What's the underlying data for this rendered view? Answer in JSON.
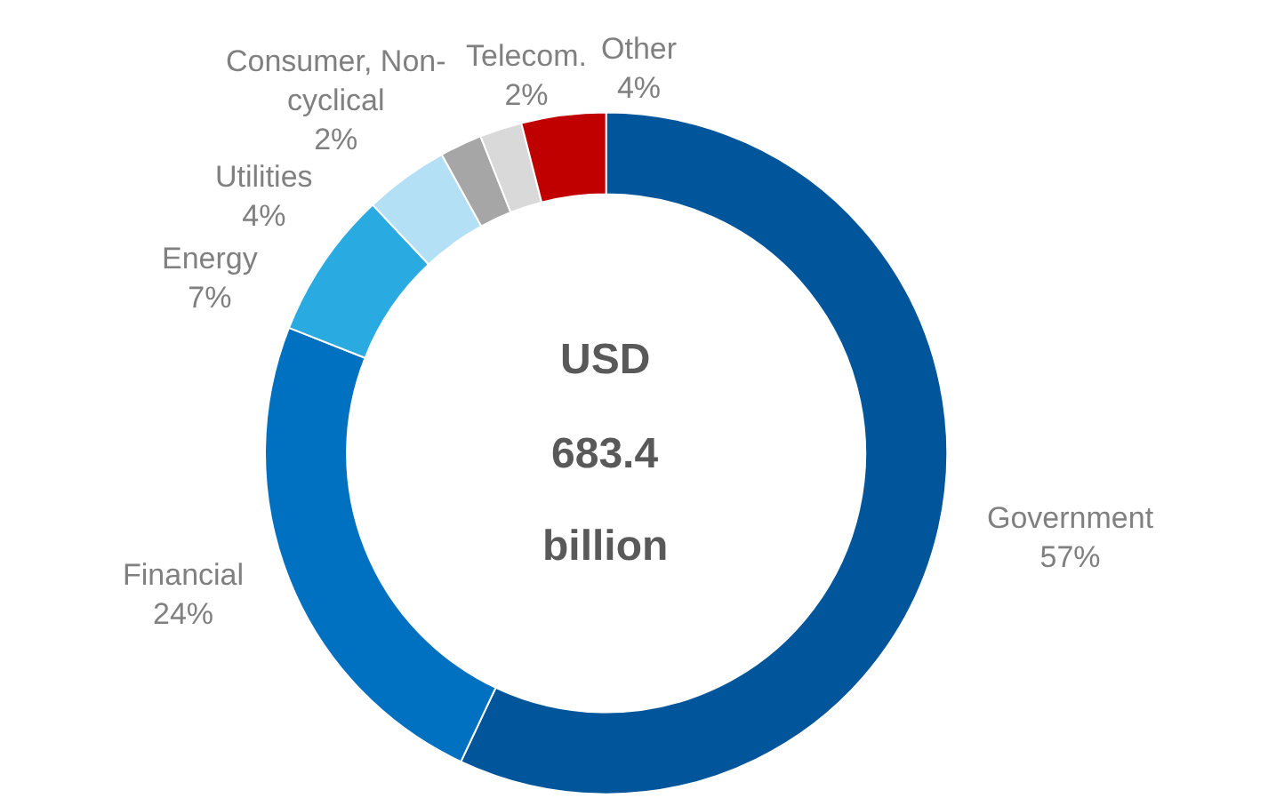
{
  "chart_data": {
    "type": "donut",
    "categories": [
      "Government",
      "Financial",
      "Energy",
      "Utilities",
      "Consumer, Non-cyclical",
      "Telecom.",
      "Other"
    ],
    "values": [
      57,
      24,
      7,
      4,
      2,
      2,
      4
    ],
    "colors": [
      "#00559b",
      "#0070c0",
      "#29abe2",
      "#b3e0f5",
      "#a6a6a6",
      "#d9d9d9",
      "#c00000"
    ],
    "value_labels": [
      "57%",
      "24%",
      "7%",
      "4%",
      "2%",
      "2%",
      "4%"
    ],
    "annotations": [
      "USD",
      "683.4",
      "billion"
    ],
    "legend": false
  }
}
